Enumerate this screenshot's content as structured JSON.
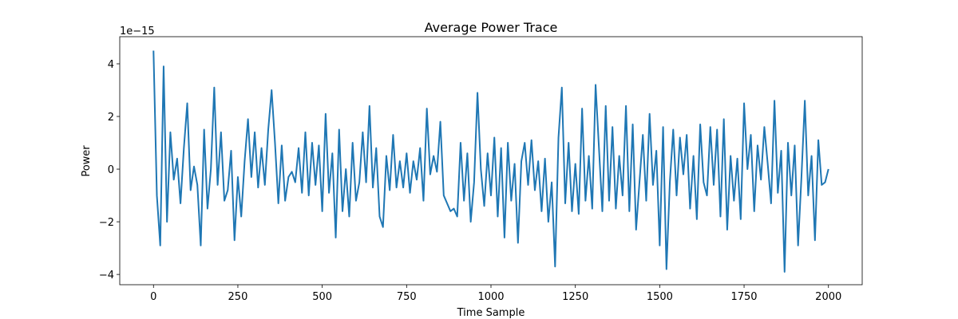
{
  "chart_data": {
    "type": "line",
    "title": "Average Power Trace",
    "xlabel": "Time Sample",
    "ylabel": "Power",
    "y_offset_label": "1e−15",
    "color": "#1f77b4",
    "grid": false,
    "xlim": [
      -100,
      2100
    ],
    "ylim": [
      -4.39,
      5.03
    ],
    "xticks": [
      0,
      250,
      500,
      750,
      1000,
      1250,
      1500,
      1750,
      2000
    ],
    "yticks": [
      {
        "value": -4,
        "label": "−4"
      },
      {
        "value": -2,
        "label": "−2"
      },
      0,
      2,
      4
    ],
    "x": [
      0,
      10,
      20,
      30,
      40,
      50,
      60,
      70,
      80,
      90,
      100,
      110,
      120,
      130,
      140,
      150,
      160,
      170,
      180,
      190,
      200,
      210,
      220,
      230,
      240,
      250,
      260,
      270,
      280,
      290,
      300,
      310,
      320,
      330,
      340,
      350,
      360,
      370,
      380,
      390,
      400,
      410,
      420,
      430,
      440,
      450,
      460,
      470,
      480,
      490,
      500,
      510,
      520,
      530,
      540,
      550,
      560,
      570,
      580,
      590,
      600,
      610,
      620,
      630,
      640,
      650,
      660,
      670,
      680,
      690,
      700,
      710,
      720,
      730,
      740,
      750,
      760,
      770,
      780,
      790,
      800,
      810,
      820,
      830,
      840,
      850,
      860,
      870,
      880,
      890,
      900,
      910,
      920,
      930,
      940,
      950,
      960,
      970,
      980,
      990,
      1000,
      1010,
      1020,
      1030,
      1040,
      1050,
      1060,
      1070,
      1080,
      1090,
      1100,
      1110,
      1120,
      1130,
      1140,
      1150,
      1160,
      1170,
      1180,
      1190,
      1200,
      1210,
      1220,
      1230,
      1240,
      1250,
      1260,
      1270,
      1280,
      1290,
      1300,
      1310,
      1320,
      1330,
      1340,
      1350,
      1360,
      1370,
      1380,
      1390,
      1400,
      1410,
      1420,
      1430,
      1440,
      1450,
      1460,
      1470,
      1480,
      1490,
      1500,
      1510,
      1520,
      1530,
      1540,
      1550,
      1560,
      1570,
      1580,
      1590,
      1600,
      1610,
      1620,
      1630,
      1640,
      1650,
      1660,
      1670,
      1680,
      1690,
      1700,
      1710,
      1720,
      1730,
      1740,
      1750,
      1760,
      1770,
      1780,
      1790,
      1800,
      1810,
      1820,
      1830,
      1840,
      1850,
      1860,
      1870,
      1880,
      1890,
      1900,
      1910,
      1920,
      1930,
      1940,
      1950,
      1960,
      1970,
      1980,
      1990,
      2000
    ],
    "values": [
      4.5,
      -1.0,
      -2.9,
      3.9,
      -2.0,
      1.4,
      -0.4,
      0.4,
      -1.3,
      0.8,
      2.5,
      -0.8,
      0.1,
      -0.6,
      -2.9,
      1.5,
      -1.5,
      0.0,
      3.1,
      -0.6,
      1.4,
      -1.2,
      -0.8,
      0.7,
      -2.7,
      -0.3,
      -1.8,
      0.3,
      1.9,
      -0.3,
      1.4,
      -0.7,
      0.8,
      -0.6,
      1.5,
      3.0,
      1.0,
      -1.3,
      0.9,
      -1.2,
      -0.3,
      -0.1,
      -0.5,
      0.8,
      -0.9,
      1.4,
      -1.0,
      1.0,
      -0.6,
      0.9,
      -1.6,
      2.1,
      -0.9,
      0.6,
      -2.6,
      1.5,
      -1.6,
      0.0,
      -1.8,
      1.0,
      -1.2,
      -0.5,
      1.4,
      -0.5,
      2.4,
      -0.7,
      0.8,
      -1.8,
      -2.2,
      0.5,
      -0.8,
      1.3,
      -0.7,
      0.3,
      -0.7,
      0.6,
      -0.9,
      0.3,
      -0.4,
      0.8,
      -1.2,
      2.3,
      -0.2,
      0.5,
      -0.1,
      1.8,
      -1.0,
      -1.3,
      -1.6,
      -1.5,
      -1.8,
      1.0,
      -1.2,
      0.6,
      -2.0,
      -0.5,
      2.9,
      0.0,
      -1.4,
      0.6,
      -1.0,
      1.2,
      -1.8,
      0.8,
      -2.6,
      1.0,
      -1.2,
      0.2,
      -2.8,
      0.3,
      1.0,
      -0.6,
      1.1,
      -0.8,
      0.3,
      -1.6,
      0.4,
      -2.0,
      -0.5,
      -3.7,
      1.2,
      3.1,
      -1.3,
      1.0,
      -1.6,
      0.2,
      -1.7,
      2.3,
      -1.2,
      0.5,
      -1.5,
      3.2,
      0.8,
      -1.6,
      2.4,
      -1.2,
      1.6,
      -1.5,
      0.5,
      -1.0,
      2.4,
      -1.6,
      1.7,
      -2.3,
      -0.5,
      1.3,
      -1.2,
      2.1,
      -0.6,
      0.7,
      -2.9,
      1.6,
      -3.8,
      -0.5,
      1.5,
      -1.0,
      1.2,
      -0.2,
      1.3,
      -1.5,
      0.5,
      -1.9,
      1.7,
      -0.5,
      -1.0,
      1.6,
      -0.6,
      1.5,
      -1.8,
      1.9,
      -2.3,
      0.5,
      -1.2,
      0.4,
      -1.9,
      2.5,
      0.0,
      1.3,
      -1.6,
      0.9,
      -0.4,
      1.6,
      0.2,
      -1.3,
      2.6,
      -0.9,
      0.7,
      -3.9,
      1.0,
      -1.0,
      0.9,
      -2.9,
      -0.3,
      2.6,
      -1.0,
      0.5,
      -2.7,
      1.1,
      -0.6,
      -0.5,
      0.0
    ]
  }
}
